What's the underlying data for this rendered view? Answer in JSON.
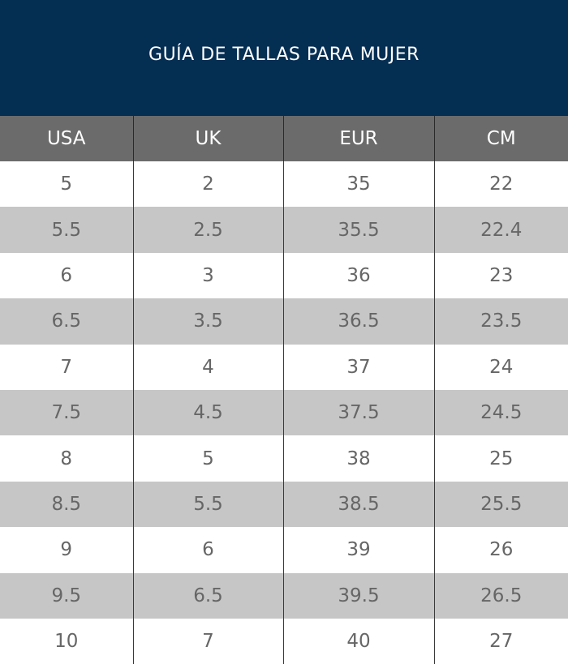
{
  "title": "GUÍA DE TALLAS PARA MUJER",
  "colors": {
    "title_background": "#052e53",
    "header_background": "#6b6b6b",
    "row_alt_background": "#c6c6c6"
  },
  "table": {
    "headers": [
      "USA",
      "UK",
      "EUR",
      "CM"
    ],
    "rows": [
      [
        "5",
        "2",
        "35",
        "22"
      ],
      [
        "5.5",
        "2.5",
        "35.5",
        "22.4"
      ],
      [
        "6",
        "3",
        "36",
        "23"
      ],
      [
        "6.5",
        "3.5",
        "36.5",
        "23.5"
      ],
      [
        "7",
        "4",
        "37",
        "24"
      ],
      [
        "7.5",
        "4.5",
        "37.5",
        "24.5"
      ],
      [
        "8",
        "5",
        "38",
        "25"
      ],
      [
        "8.5",
        "5.5",
        "38.5",
        "25.5"
      ],
      [
        "9",
        "6",
        "39",
        "26"
      ],
      [
        "9.5",
        "6.5",
        "39.5",
        "26.5"
      ],
      [
        "10",
        "7",
        "40",
        "27"
      ]
    ]
  }
}
